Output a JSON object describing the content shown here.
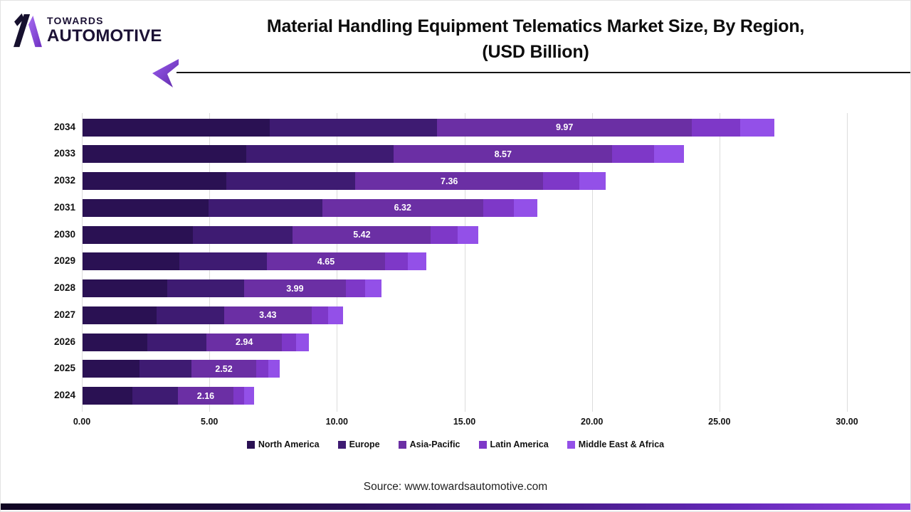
{
  "logo": {
    "top": "TOWARDS",
    "bottom": "AUTOMOTIVE"
  },
  "title": {
    "line1": "Material Handling Equipment Telematics Market Size, By Region,",
    "line2": "(USD Billion)"
  },
  "source": "Source: www.towardsautomotive.com",
  "accent_colors": {
    "logo_purple": "#8b45e0",
    "arrow_purple_light": "#9b5cf0",
    "arrow_purple_dark": "#5f2aa8"
  },
  "chart_data": {
    "type": "bar",
    "orientation": "horizontal",
    "stacked": true,
    "title": "Material Handling Equipment Telematics Market Size, By Region, (USD Billion)",
    "xlabel": "",
    "ylabel": "",
    "xlim": [
      0,
      30
    ],
    "grid": "vertical",
    "legend_position": "bottom",
    "x_ticks": [
      "0.00",
      "5.00",
      "10.00",
      "15.00",
      "20.00",
      "25.00",
      "30.00"
    ],
    "categories": [
      "2034",
      "2033",
      "2032",
      "2031",
      "2030",
      "2029",
      "2028",
      "2027",
      "2026",
      "2025",
      "2024"
    ],
    "series": [
      {
        "name": "North America",
        "color": "#2a1153",
        "values": [
          7.33,
          6.43,
          5.63,
          4.94,
          4.33,
          3.79,
          3.32,
          2.91,
          2.55,
          2.24,
          1.96
        ]
      },
      {
        "name": "Europe",
        "color": "#3e1b72",
        "values": [
          6.58,
          5.77,
          5.07,
          4.45,
          3.91,
          3.43,
          3.01,
          2.64,
          2.32,
          2.04,
          1.79
        ]
      },
      {
        "name": "Asia-Pacific",
        "color": "#6b2fa4",
        "values": [
          9.97,
          8.57,
          7.36,
          6.32,
          5.42,
          4.65,
          3.99,
          3.43,
          2.94,
          2.52,
          2.16
        ]
      },
      {
        "name": "Latin America",
        "color": "#7e38c8",
        "values": [
          1.9,
          1.64,
          1.41,
          1.21,
          1.04,
          0.89,
          0.77,
          0.66,
          0.57,
          0.49,
          0.42
        ]
      },
      {
        "name": "Middle East & Africa",
        "color": "#9350e8",
        "values": [
          1.33,
          1.18,
          1.04,
          0.92,
          0.81,
          0.72,
          0.64,
          0.56,
          0.5,
          0.44,
          0.39
        ]
      }
    ],
    "labeled_series": "Asia-Pacific",
    "bar_labels": [
      "9.97",
      "8.57",
      "7.36",
      "6.32",
      "5.42",
      "4.65",
      "3.99",
      "3.43",
      "2.94",
      "2.52",
      "2.16"
    ]
  }
}
